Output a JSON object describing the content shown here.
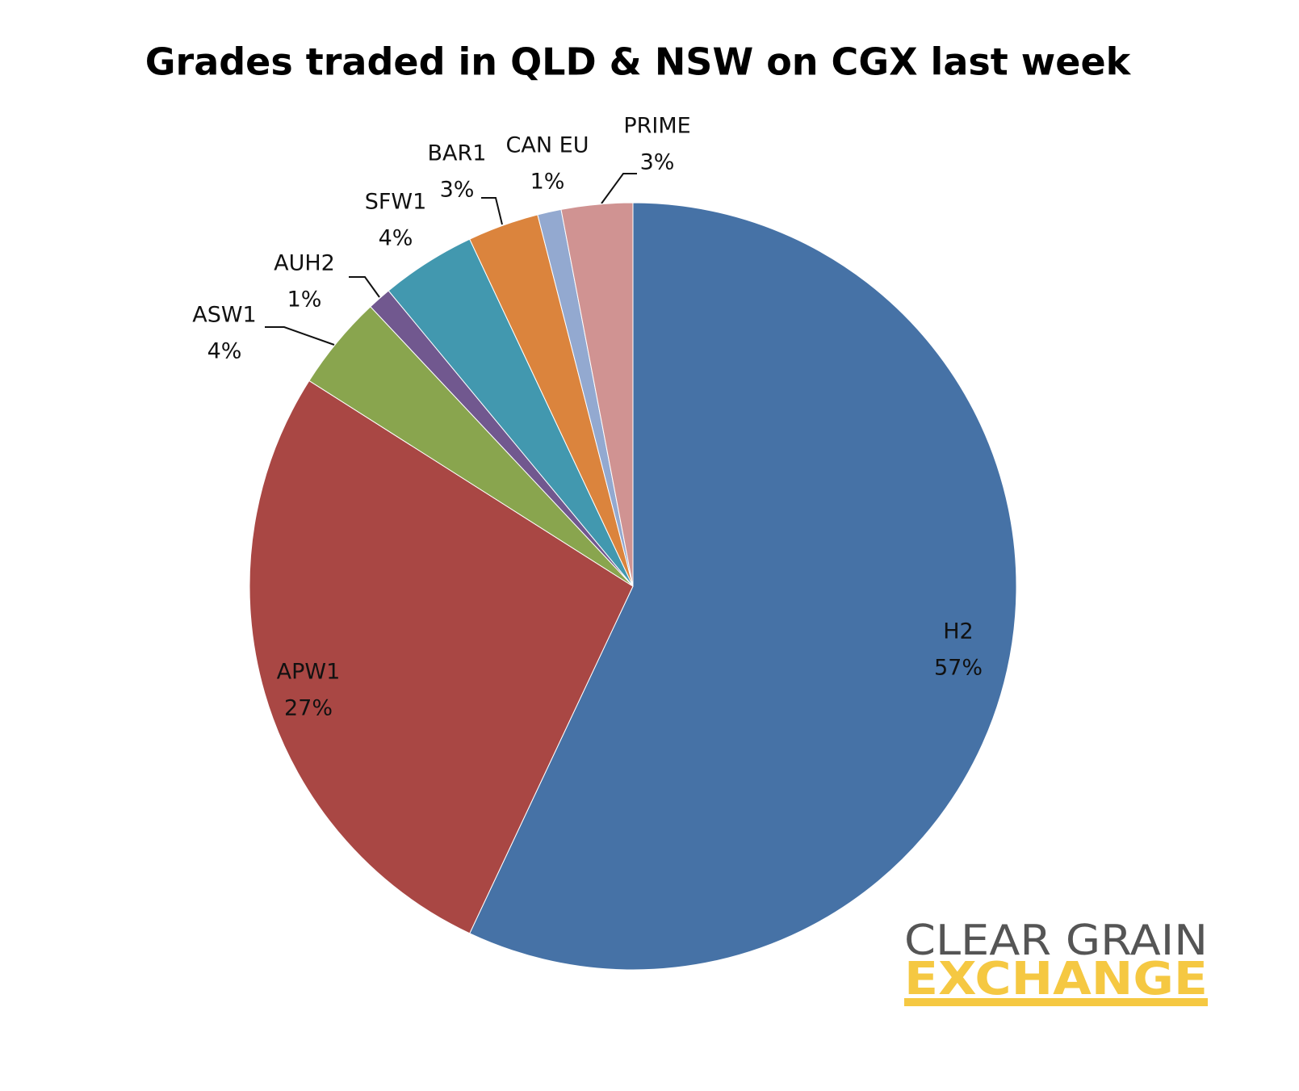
{
  "chart_data": {
    "type": "pie",
    "title": "Grades traded in QLD & NSW on CGX last week",
    "categories": [
      "H2",
      "APW1",
      "ASW1",
      "AUH2",
      "SFW1",
      "BAR1",
      "CAN EU",
      "PRIME"
    ],
    "values": [
      57,
      27,
      4,
      1,
      4,
      3,
      1,
      3
    ],
    "value_labels": [
      "57%",
      "27%",
      "4%",
      "1%",
      "4%",
      "3%",
      "1%",
      "3%"
    ],
    "colors": [
      "#4672a6",
      "#a94744",
      "#89a54e",
      "#71588f",
      "#4298af",
      "#db843d",
      "#93a9d0",
      "#d09392"
    ]
  },
  "logo": {
    "line1": "CLEAR GRAIN",
    "line2": "EXCHANGE"
  }
}
